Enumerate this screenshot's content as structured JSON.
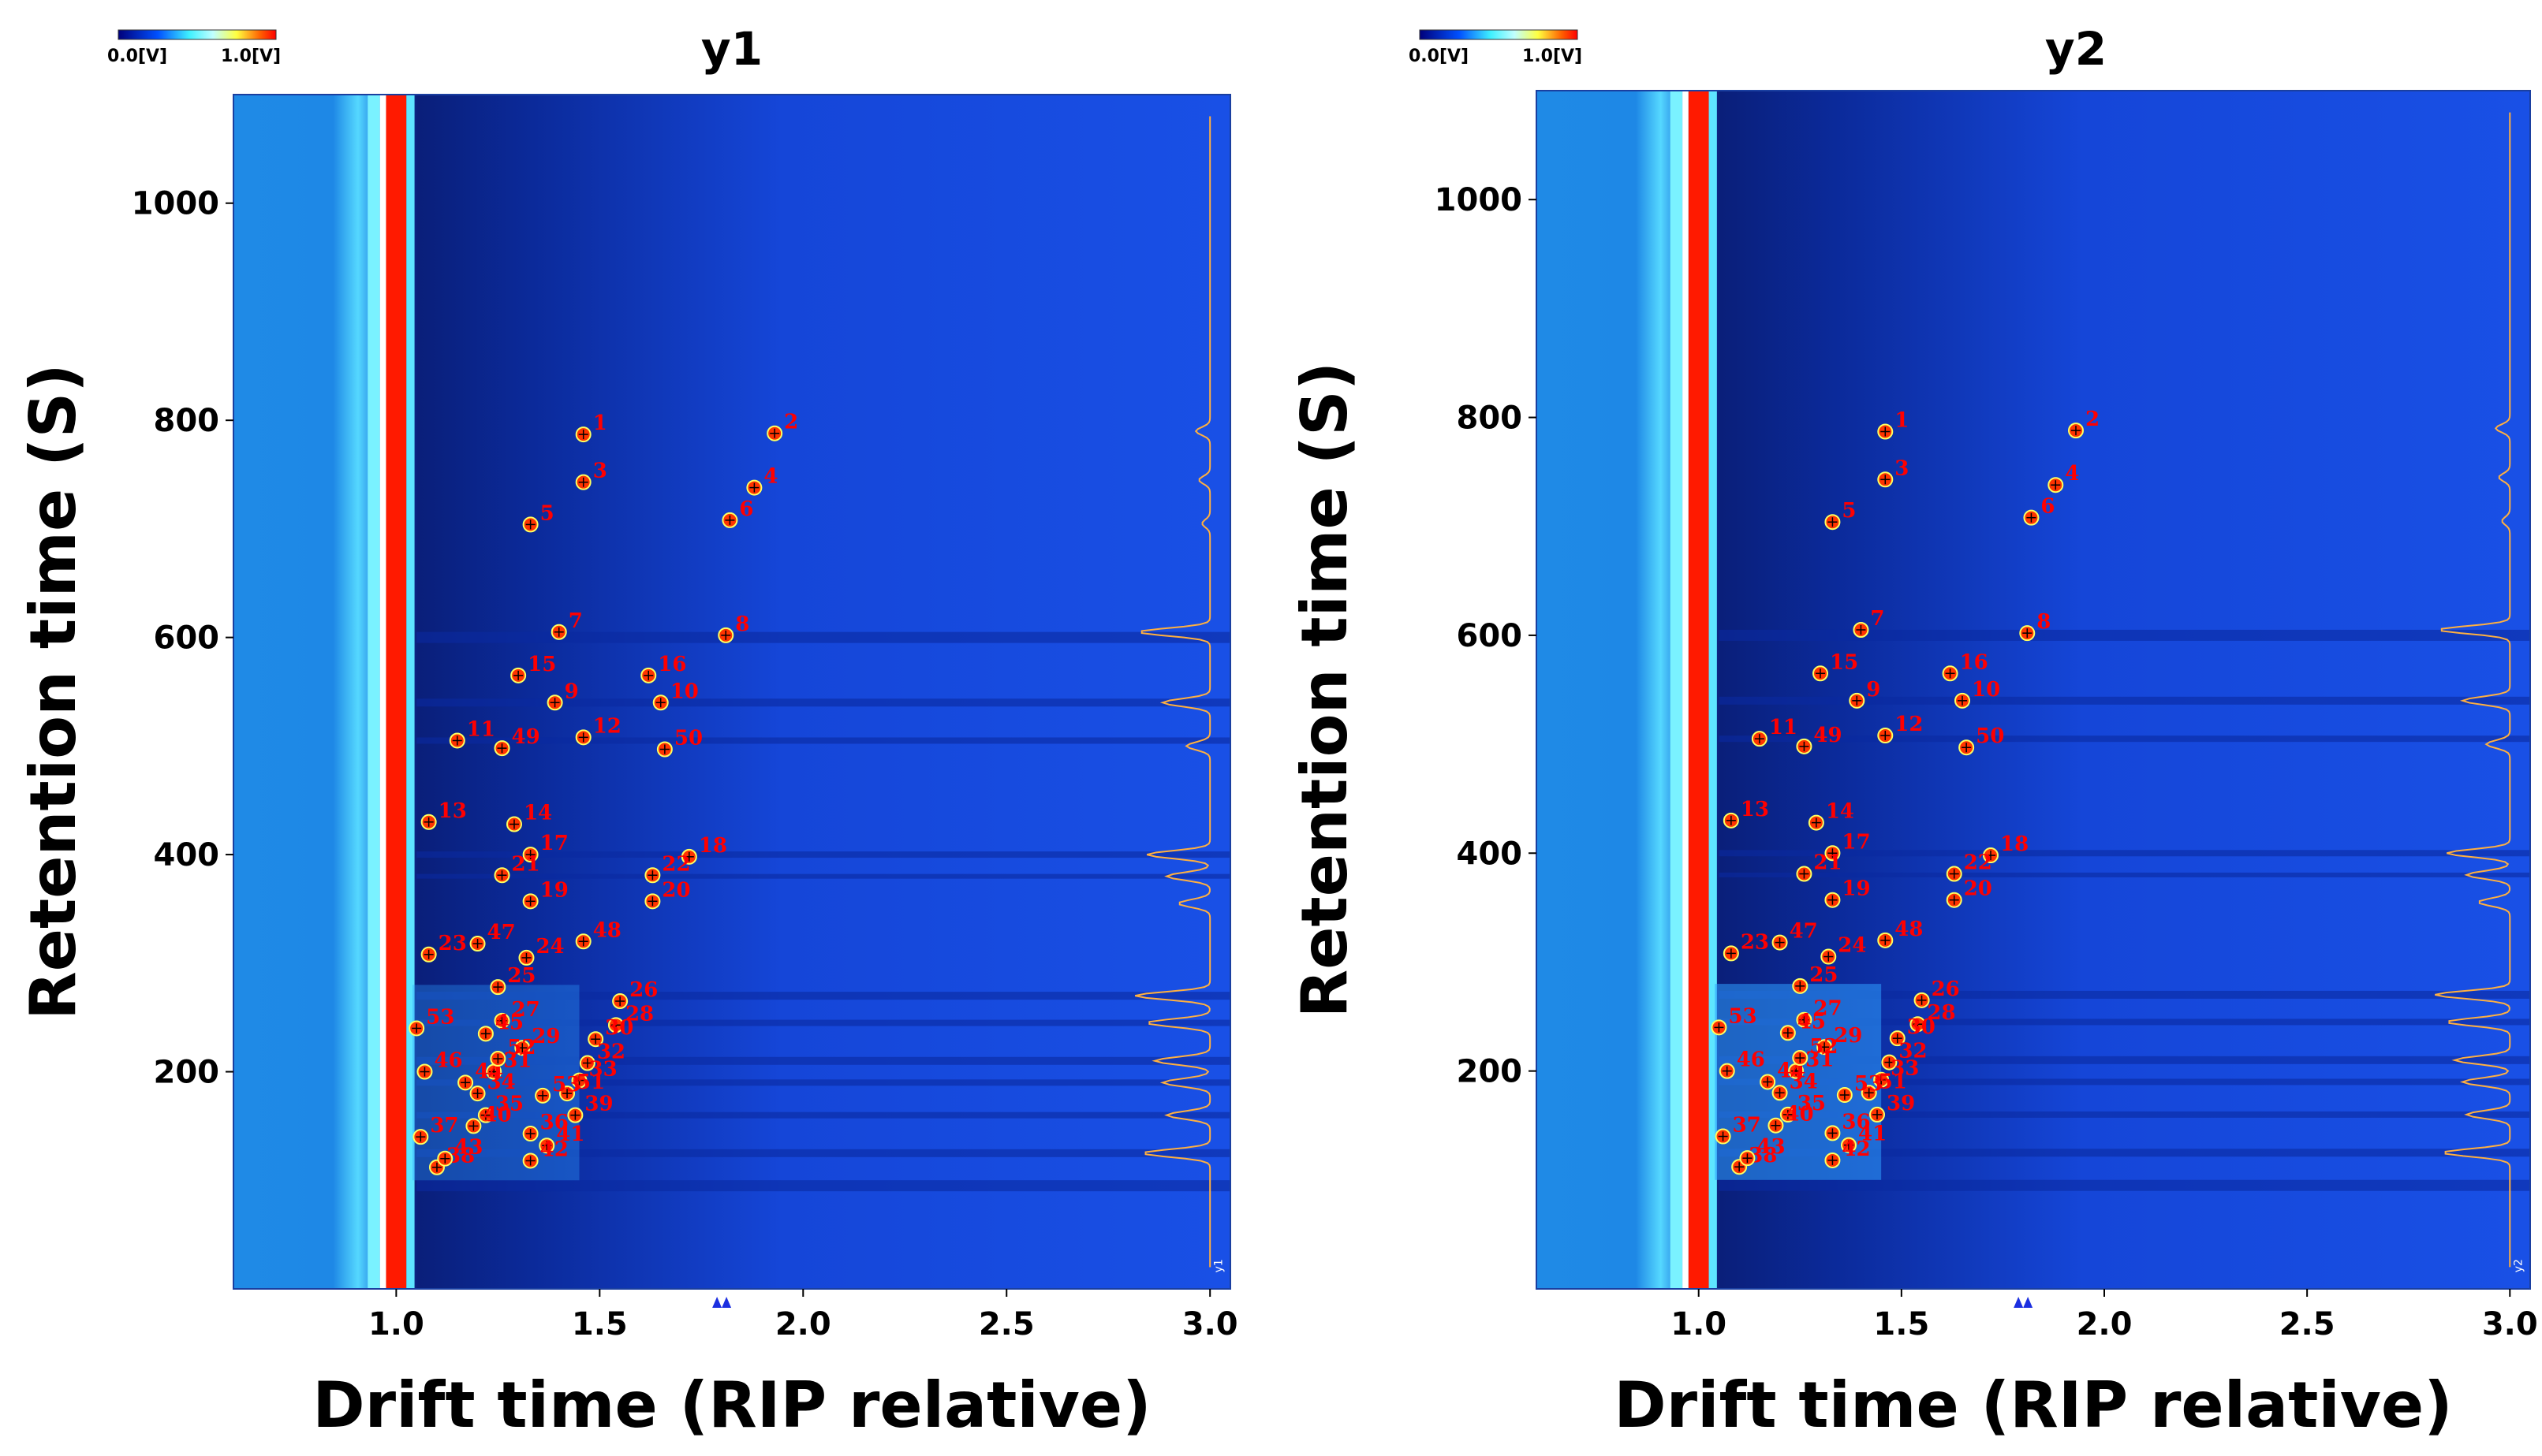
{
  "chart_data": [
    {
      "type": "heatmap",
      "title": "y1",
      "xlabel": "Drift time (RIP relative)",
      "ylabel": "Retention time (S)",
      "xlim": [
        0.6,
        3.05
      ],
      "ylim": [
        0,
        1100
      ],
      "xticks": [
        "1.0",
        "1.5",
        "2.0",
        "2.5",
        "3.0"
      ],
      "yticks": [
        "200",
        "400",
        "600",
        "800",
        "1000"
      ],
      "colorbar": {
        "min_label": "0.0[V]",
        "max_label": "1.0[V]"
      },
      "spectrum_tag": "y1",
      "peaks": [
        {
          "label": "1",
          "x": 1.46,
          "y": 787
        },
        {
          "label": "2",
          "x": 1.93,
          "y": 788
        },
        {
          "label": "3",
          "x": 1.46,
          "y": 743
        },
        {
          "label": "4",
          "x": 1.88,
          "y": 738
        },
        {
          "label": "5",
          "x": 1.33,
          "y": 704
        },
        {
          "label": "6",
          "x": 1.82,
          "y": 708
        },
        {
          "label": "7",
          "x": 1.4,
          "y": 605
        },
        {
          "label": "8",
          "x": 1.81,
          "y": 602
        },
        {
          "label": "9",
          "x": 1.39,
          "y": 540
        },
        {
          "label": "10",
          "x": 1.65,
          "y": 540
        },
        {
          "label": "11",
          "x": 1.15,
          "y": 505
        },
        {
          "label": "12",
          "x": 1.46,
          "y": 508
        },
        {
          "label": "13",
          "x": 1.08,
          "y": 430
        },
        {
          "label": "14",
          "x": 1.29,
          "y": 428
        },
        {
          "label": "15",
          "x": 1.3,
          "y": 565
        },
        {
          "label": "16",
          "x": 1.62,
          "y": 565
        },
        {
          "label": "17",
          "x": 1.33,
          "y": 400
        },
        {
          "label": "18",
          "x": 1.72,
          "y": 398
        },
        {
          "label": "19",
          "x": 1.33,
          "y": 357
        },
        {
          "label": "20",
          "x": 1.63,
          "y": 357
        },
        {
          "label": "21",
          "x": 1.26,
          "y": 381
        },
        {
          "label": "22",
          "x": 1.63,
          "y": 381
        },
        {
          "label": "23",
          "x": 1.08,
          "y": 308
        },
        {
          "label": "24",
          "x": 1.32,
          "y": 305
        },
        {
          "label": "25",
          "x": 1.25,
          "y": 278
        },
        {
          "label": "26",
          "x": 1.55,
          "y": 265
        },
        {
          "label": "27",
          "x": 1.26,
          "y": 247
        },
        {
          "label": "28",
          "x": 1.54,
          "y": 243
        },
        {
          "label": "29",
          "x": 1.31,
          "y": 222
        },
        {
          "label": "30",
          "x": 1.49,
          "y": 230
        },
        {
          "label": "31",
          "x": 1.24,
          "y": 200
        },
        {
          "label": "32",
          "x": 1.47,
          "y": 208
        },
        {
          "label": "33",
          "x": 1.45,
          "y": 192
        },
        {
          "label": "34",
          "x": 1.2,
          "y": 180
        },
        {
          "label": "35",
          "x": 1.22,
          "y": 160
        },
        {
          "label": "36",
          "x": 1.33,
          "y": 143
        },
        {
          "label": "37",
          "x": 1.06,
          "y": 140
        },
        {
          "label": "38",
          "x": 1.1,
          "y": 112
        },
        {
          "label": "39",
          "x": 1.44,
          "y": 160
        },
        {
          "label": "40",
          "x": 1.19,
          "y": 150
        },
        {
          "label": "41",
          "x": 1.37,
          "y": 132
        },
        {
          "label": "42",
          "x": 1.33,
          "y": 118
        },
        {
          "label": "43",
          "x": 1.12,
          "y": 120
        },
        {
          "label": "44",
          "x": 1.17,
          "y": 190
        },
        {
          "label": "45",
          "x": 1.22,
          "y": 235
        },
        {
          "label": "46",
          "x": 1.07,
          "y": 200
        },
        {
          "label": "47",
          "x": 1.2,
          "y": 318
        },
        {
          "label": "48",
          "x": 1.46,
          "y": 320
        },
        {
          "label": "49",
          "x": 1.26,
          "y": 498
        },
        {
          "label": "50",
          "x": 1.66,
          "y": 497
        },
        {
          "label": "51",
          "x": 1.42,
          "y": 180
        },
        {
          "label": "52",
          "x": 1.25,
          "y": 212
        },
        {
          "label": "53",
          "x": 1.36,
          "y": 178
        },
        {
          "label": "53",
          "x": 1.05,
          "y": 240
        }
      ]
    },
    {
      "type": "heatmap",
      "title": "y2",
      "xlabel": "Drift time (RIP relative)",
      "ylabel": "Retention time (S)",
      "xlim": [
        0.6,
        3.05
      ],
      "ylim": [
        0,
        1100
      ],
      "xticks": [
        "1.0",
        "1.5",
        "2.0",
        "2.5",
        "3.0"
      ],
      "yticks": [
        "200",
        "400",
        "600",
        "800",
        "1000"
      ],
      "colorbar": {
        "min_label": "0.0[V]",
        "max_label": "1.0[V]"
      },
      "spectrum_tag": "y2",
      "peaks": [
        {
          "label": "1",
          "x": 1.46,
          "y": 787
        },
        {
          "label": "2",
          "x": 1.93,
          "y": 788
        },
        {
          "label": "3",
          "x": 1.46,
          "y": 743
        },
        {
          "label": "4",
          "x": 1.88,
          "y": 738
        },
        {
          "label": "5",
          "x": 1.33,
          "y": 704
        },
        {
          "label": "6",
          "x": 1.82,
          "y": 708
        },
        {
          "label": "7",
          "x": 1.4,
          "y": 605
        },
        {
          "label": "8",
          "x": 1.81,
          "y": 602
        },
        {
          "label": "9",
          "x": 1.39,
          "y": 540
        },
        {
          "label": "10",
          "x": 1.65,
          "y": 540
        },
        {
          "label": "11",
          "x": 1.15,
          "y": 505
        },
        {
          "label": "12",
          "x": 1.46,
          "y": 508
        },
        {
          "label": "13",
          "x": 1.08,
          "y": 430
        },
        {
          "label": "14",
          "x": 1.29,
          "y": 428
        },
        {
          "label": "15",
          "x": 1.3,
          "y": 565
        },
        {
          "label": "16",
          "x": 1.62,
          "y": 565
        },
        {
          "label": "17",
          "x": 1.33,
          "y": 400
        },
        {
          "label": "18",
          "x": 1.72,
          "y": 398
        },
        {
          "label": "19",
          "x": 1.33,
          "y": 357
        },
        {
          "label": "20",
          "x": 1.63,
          "y": 357
        },
        {
          "label": "21",
          "x": 1.26,
          "y": 381
        },
        {
          "label": "22",
          "x": 1.63,
          "y": 381
        },
        {
          "label": "23",
          "x": 1.08,
          "y": 308
        },
        {
          "label": "24",
          "x": 1.32,
          "y": 305
        },
        {
          "label": "25",
          "x": 1.25,
          "y": 278
        },
        {
          "label": "26",
          "x": 1.55,
          "y": 265
        },
        {
          "label": "27",
          "x": 1.26,
          "y": 247
        },
        {
          "label": "28",
          "x": 1.54,
          "y": 243
        },
        {
          "label": "29",
          "x": 1.31,
          "y": 222
        },
        {
          "label": "30",
          "x": 1.49,
          "y": 230
        },
        {
          "label": "31",
          "x": 1.24,
          "y": 200
        },
        {
          "label": "32",
          "x": 1.47,
          "y": 208
        },
        {
          "label": "33",
          "x": 1.45,
          "y": 192
        },
        {
          "label": "34",
          "x": 1.2,
          "y": 180
        },
        {
          "label": "35",
          "x": 1.22,
          "y": 160
        },
        {
          "label": "36",
          "x": 1.33,
          "y": 143
        },
        {
          "label": "37",
          "x": 1.06,
          "y": 140
        },
        {
          "label": "38",
          "x": 1.1,
          "y": 112
        },
        {
          "label": "39",
          "x": 1.44,
          "y": 160
        },
        {
          "label": "40",
          "x": 1.19,
          "y": 150
        },
        {
          "label": "41",
          "x": 1.37,
          "y": 132
        },
        {
          "label": "42",
          "x": 1.33,
          "y": 118
        },
        {
          "label": "43",
          "x": 1.12,
          "y": 120
        },
        {
          "label": "44",
          "x": 1.17,
          "y": 190
        },
        {
          "label": "45",
          "x": 1.22,
          "y": 235
        },
        {
          "label": "46",
          "x": 1.07,
          "y": 200
        },
        {
          "label": "47",
          "x": 1.2,
          "y": 318
        },
        {
          "label": "48",
          "x": 1.46,
          "y": 320
        },
        {
          "label": "49",
          "x": 1.26,
          "y": 498
        },
        {
          "label": "50",
          "x": 1.66,
          "y": 497
        },
        {
          "label": "51",
          "x": 1.42,
          "y": 180
        },
        {
          "label": "52",
          "x": 1.25,
          "y": 212
        },
        {
          "label": "53",
          "x": 1.36,
          "y": 178
        },
        {
          "label": "53",
          "x": 1.05,
          "y": 240
        }
      ]
    }
  ]
}
